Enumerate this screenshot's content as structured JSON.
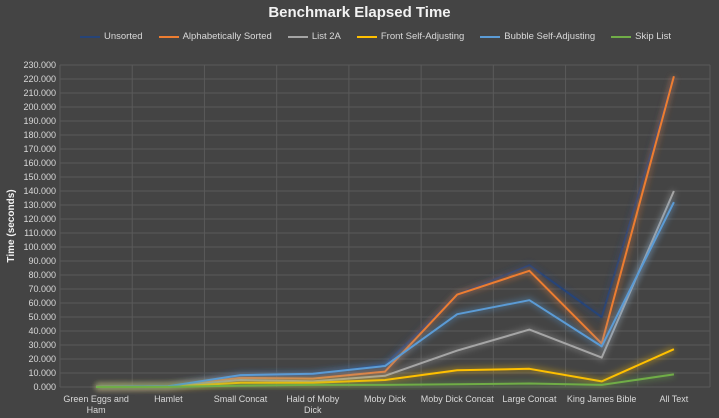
{
  "chart_data": {
    "type": "line",
    "title": "Benchmark Elapsed Time",
    "xlabel": "",
    "ylabel": "Time (seconds)",
    "ylim": [
      0,
      230
    ],
    "y_ticks": [
      "0.000",
      "10.000",
      "20.000",
      "30.000",
      "40.000",
      "50.000",
      "60.000",
      "70.000",
      "80.000",
      "90.000",
      "100.000",
      "110.000",
      "120.000",
      "130.000",
      "140.000",
      "150.000",
      "160.000",
      "170.000",
      "180.000",
      "190.000",
      "200.000",
      "210.000",
      "220.000",
      "230.000"
    ],
    "categories": [
      "Green Eggs and Ham",
      "Hamlet",
      "Small Concat",
      "Hald of Moby Dick",
      "Moby Dick",
      "Moby Dick Concat",
      "Large Concat",
      "King James Bible",
      "All Text"
    ],
    "grid": true,
    "legend": "top",
    "series": [
      {
        "name": "Unsorted",
        "color": "#264478",
        "values": [
          0.1,
          0.6,
          8.5,
          9,
          16,
          66,
          87,
          50,
          222
        ]
      },
      {
        "name": "Alphabetically Sorted",
        "color": "#ed7d31",
        "values": [
          0.1,
          0.5,
          6.5,
          6,
          11,
          66,
          83,
          31,
          222
        ]
      },
      {
        "name": "List 2A",
        "color": "#a5a5a5",
        "values": [
          0.1,
          0.4,
          5,
          4,
          8,
          26,
          41,
          21,
          140
        ]
      },
      {
        "name": "Front Self-Adjusting",
        "color": "#ffc000",
        "values": [
          0.05,
          0.2,
          3,
          3,
          5,
          12,
          13,
          4,
          27
        ]
      },
      {
        "name": "Bubble Self-Adjusting",
        "color": "#5b9bd5",
        "values": [
          0.1,
          0.5,
          8.5,
          9.5,
          15,
          52,
          62,
          29,
          132
        ]
      },
      {
        "name": "Skip List",
        "color": "#70ad47",
        "values": [
          0.02,
          0.1,
          1,
          1.5,
          1.5,
          2,
          2.5,
          1.5,
          9
        ]
      }
    ]
  }
}
